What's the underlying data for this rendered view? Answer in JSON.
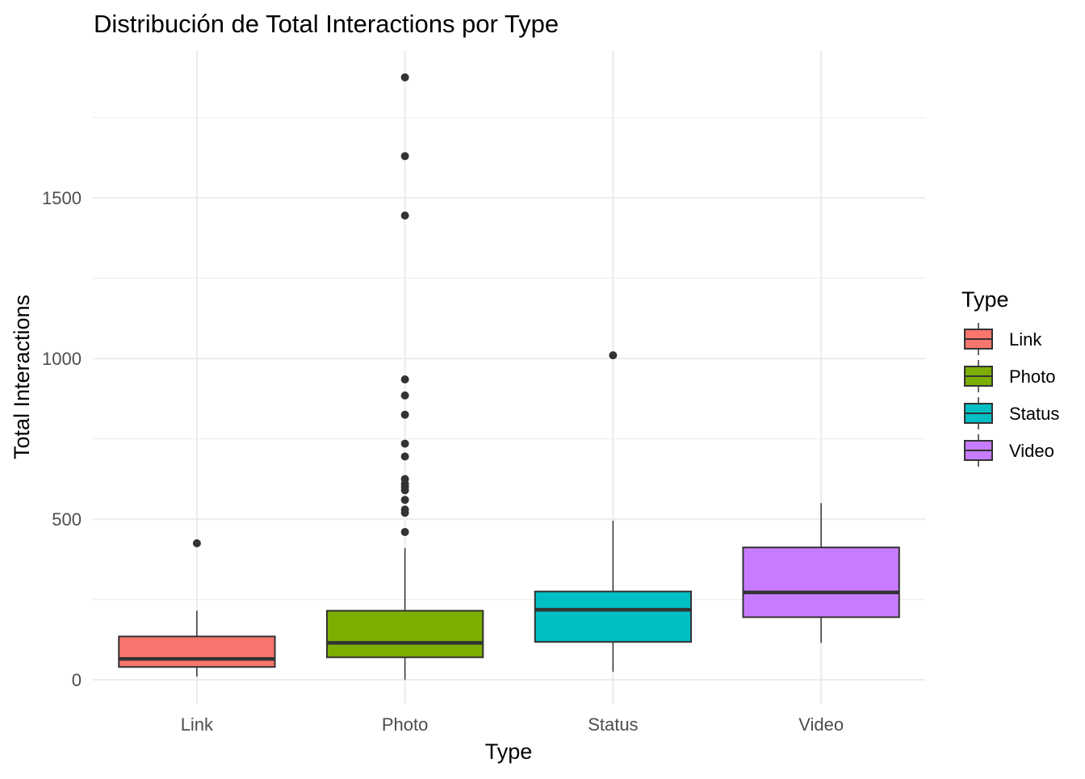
{
  "chart_data": {
    "type": "box",
    "title": "Distribución de Total Interactions por Type",
    "xlabel": "Type",
    "ylabel": "Total Interactions",
    "ylim": [
      -75,
      1960
    ],
    "y_ticks": [
      0,
      500,
      1000,
      1500
    ],
    "y_tick_labels": [
      "0",
      "500",
      "1000",
      "1500"
    ],
    "y_minor_gridlines": [
      250,
      750,
      1250,
      1750
    ],
    "categories": [
      "Link",
      "Photo",
      "Status",
      "Video"
    ],
    "grid": true,
    "legend": {
      "title": "Type",
      "position": "right",
      "entries": [
        "Link",
        "Photo",
        "Status",
        "Video"
      ]
    },
    "colors": {
      "Link": "#F8766D",
      "Photo": "#7CAE00",
      "Status": "#00BFC4",
      "Video": "#C77CFF",
      "outline": "#333333",
      "grid": "#ebebeb"
    },
    "boxes": [
      {
        "category": "Link",
        "min": 10,
        "q1": 40,
        "median": 65,
        "q3": 135,
        "max": 215,
        "outliers": [
          425
        ]
      },
      {
        "category": "Photo",
        "min": 0,
        "q1": 70,
        "median": 115,
        "q3": 215,
        "max": 410,
        "outliers": [
          460,
          520,
          530,
          560,
          590,
          600,
          610,
          625,
          695,
          735,
          825,
          885,
          935,
          1445,
          1630,
          1875
        ]
      },
      {
        "category": "Status",
        "min": 25,
        "q1": 118,
        "median": 218,
        "q3": 275,
        "max": 495,
        "outliers": [
          1010
        ]
      },
      {
        "category": "Video",
        "min": 115,
        "q1": 195,
        "median": 272,
        "q3": 412,
        "max": 550,
        "outliers": []
      }
    ]
  }
}
